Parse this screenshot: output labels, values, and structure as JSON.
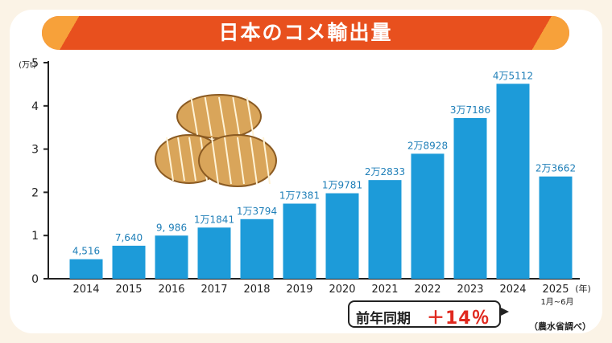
{
  "title": "日本のコメ輸出量",
  "source_note": "（農水省調べ）",
  "callout": {
    "label": "前年同期",
    "value": "＋14％"
  },
  "colors": {
    "bar": "#1d9bd9",
    "title_bg": "#e8501e",
    "highlight": "#e0281e"
  },
  "illustration": "rice-bales-icon",
  "chart_data": {
    "type": "bar",
    "title": "日本のコメ輸出量",
    "categories": [
      "2014",
      "2015",
      "2016",
      "2017",
      "2018",
      "2019",
      "2020",
      "2021",
      "2022",
      "2023",
      "2024",
      "2025"
    ],
    "values": [
      4516,
      7640,
      9986,
      11841,
      13794,
      17381,
      19781,
      22833,
      28928,
      37186,
      45112,
      23662
    ],
    "data_labels": [
      "4,516",
      "7,640",
      "9, 986",
      "1万1841",
      "1万3794",
      "1万7381",
      "1万9781",
      "2万2833",
      "2万8928",
      "3万7186",
      "4万5112",
      "2万3662"
    ],
    "yunit": "(万t)",
    "xunit": "(年)",
    "last_category_note": "1月~6月",
    "yticks": [
      "0",
      "1",
      "2",
      "3",
      "4",
      "5"
    ],
    "ylim": [
      0,
      50000
    ],
    "grid": false,
    "legend": "none"
  }
}
